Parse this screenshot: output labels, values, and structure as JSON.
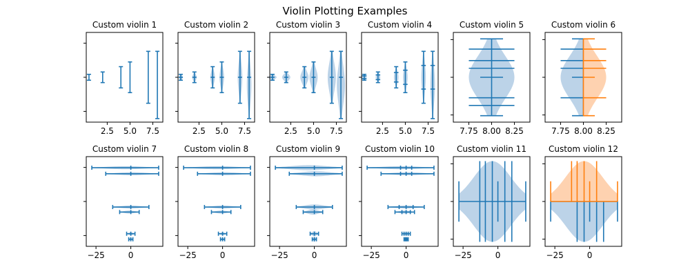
{
  "suptitle": "Violin Plotting Examples",
  "colors": {
    "blue": "#1f77b4",
    "blue_fill": "#bcd3e8",
    "orange": "#ff7f0e",
    "orange_fill": "#fed2b0"
  },
  "chart_data": [
    {
      "type": "violin",
      "title": "Custom violin 1",
      "orientation": "vertical",
      "x_ticks": [
        2.5,
        5.0,
        7.5
      ],
      "x_tick_labels": [
        "2.5",
        "5.0",
        "7.5"
      ],
      "xlim": [
        0.2,
        8.6
      ],
      "ylim": [
        -3.8,
        3.8
      ],
      "violins": [
        {
          "pos": 0.5,
          "min": -0.25,
          "max": 0.25,
          "median": 0,
          "mean": 0,
          "width": 0.08,
          "color": "blue"
        },
        {
          "pos": 2,
          "min": -0.45,
          "max": 0.45,
          "median": 0,
          "mean": 0,
          "width": 0.08,
          "color": "blue"
        },
        {
          "pos": 4,
          "min": -0.9,
          "max": 0.9,
          "median": 0,
          "mean": 0,
          "width": 0.08,
          "color": "blue"
        },
        {
          "pos": 5,
          "min": -1.3,
          "max": 1.3,
          "median": 0,
          "mean": 0,
          "width": 0.08,
          "color": "blue"
        },
        {
          "pos": 7,
          "min": -2.2,
          "max": 2.2,
          "median": 0,
          "mean": 0,
          "width": 0.08,
          "color": "blue"
        },
        {
          "pos": 8,
          "min": -3.5,
          "max": 2.2,
          "median": 0,
          "mean": 0,
          "width": 0.08,
          "color": "blue"
        }
      ]
    },
    {
      "type": "violin",
      "title": "Custom violin 2",
      "orientation": "vertical",
      "x_ticks": [
        2.5,
        5.0,
        7.5
      ],
      "x_tick_labels": [
        "2.5",
        "5.0",
        "7.5"
      ],
      "xlim": [
        0.2,
        8.6
      ],
      "ylim": [
        -3.8,
        3.8
      ],
      "violins": [
        {
          "pos": 0.5,
          "min": -0.25,
          "max": 0.25,
          "median": 0,
          "mean": 0,
          "width": 0.5,
          "color": "blue",
          "showmedians": true
        },
        {
          "pos": 2,
          "min": -0.45,
          "max": 0.45,
          "median": 0,
          "mean": 0,
          "width": 0.5,
          "color": "blue",
          "showmedians": true
        },
        {
          "pos": 4,
          "min": -0.9,
          "max": 0.9,
          "median": 0,
          "mean": 0,
          "width": 0.5,
          "color": "blue",
          "showmedians": true
        },
        {
          "pos": 5,
          "min": -1.3,
          "max": 1.3,
          "median": 0,
          "mean": 0,
          "width": 0.5,
          "color": "blue",
          "showmedians": true
        },
        {
          "pos": 7,
          "min": -2.2,
          "max": 2.2,
          "median": 0,
          "mean": 0,
          "width": 0.5,
          "color": "blue",
          "showmedians": true
        },
        {
          "pos": 8,
          "min": -3.5,
          "max": 2.2,
          "median": 0,
          "mean": 0,
          "width": 0.5,
          "color": "blue",
          "showmedians": true
        }
      ]
    },
    {
      "type": "violin",
      "title": "Custom violin 3",
      "orientation": "vertical",
      "x_ticks": [
        2.5,
        5.0,
        7.5
      ],
      "x_tick_labels": [
        "2.5",
        "5.0",
        "7.5"
      ],
      "xlim": [
        0.2,
        8.6
      ],
      "ylim": [
        -3.8,
        3.8
      ],
      "violins": [
        {
          "pos": 0.5,
          "min": -0.25,
          "max": 0.25,
          "median": 0,
          "mean": 0,
          "width": 0.9,
          "color": "blue",
          "showmedians": true
        },
        {
          "pos": 2,
          "min": -0.45,
          "max": 0.45,
          "median": 0,
          "mean": 0,
          "width": 0.9,
          "color": "blue",
          "showmedians": true
        },
        {
          "pos": 4,
          "min": -0.9,
          "max": 0.9,
          "median": 0,
          "mean": 0,
          "width": 0.9,
          "color": "blue",
          "showmedians": true
        },
        {
          "pos": 5,
          "min": -1.3,
          "max": 1.3,
          "median": 0,
          "mean": 0,
          "width": 0.9,
          "color": "blue",
          "showmedians": true
        },
        {
          "pos": 7,
          "min": -2.2,
          "max": 2.2,
          "median": 0,
          "mean": 0,
          "width": 0.9,
          "color": "blue",
          "showmedians": true
        },
        {
          "pos": 8,
          "min": -3.5,
          "max": 2.2,
          "median": 0,
          "mean": 0,
          "width": 0.9,
          "color": "blue",
          "showmedians": true
        }
      ]
    },
    {
      "type": "violin",
      "title": "Custom violin 4",
      "orientation": "vertical",
      "x_ticks": [
        2.5,
        5.0,
        7.5
      ],
      "x_tick_labels": [
        "2.5",
        "5.0",
        "7.5"
      ],
      "xlim": [
        0.2,
        8.6
      ],
      "ylim": [
        -3.8,
        3.8
      ],
      "violins": [
        {
          "pos": 0.5,
          "min": -0.25,
          "max": 0.25,
          "median": 0,
          "mean": 0,
          "width": 0.5,
          "color": "blue",
          "quantiles": [
            -0.12,
            0.12
          ]
        },
        {
          "pos": 2,
          "min": -0.45,
          "max": 0.45,
          "median": 0,
          "mean": 0,
          "width": 0.5,
          "color": "blue",
          "quantiles": [
            -0.2,
            0.2
          ]
        },
        {
          "pos": 4,
          "min": -0.9,
          "max": 0.9,
          "median": 0,
          "mean": 0,
          "width": 0.5,
          "color": "blue",
          "quantiles": [
            -0.4,
            0.4
          ]
        },
        {
          "pos": 5,
          "min": -1.3,
          "max": 1.3,
          "median": 0,
          "mean": 0,
          "width": 0.5,
          "color": "blue",
          "quantiles": [
            -0.6,
            0.6
          ]
        },
        {
          "pos": 7,
          "min": -2.2,
          "max": 2.2,
          "median": 0,
          "mean": 0,
          "width": 0.5,
          "color": "blue",
          "quantiles": [
            -1.0,
            1.0
          ]
        },
        {
          "pos": 8,
          "min": -3.5,
          "max": 2.2,
          "median": 0,
          "mean": 0,
          "width": 0.5,
          "color": "blue",
          "quantiles": [
            -1.0,
            1.0
          ]
        }
      ]
    },
    {
      "type": "violin",
      "title": "Custom violin 5",
      "orientation": "vertical",
      "x_ticks": [
        7.75,
        8.0,
        8.25
      ],
      "x_tick_labels": [
        "7.75",
        "8.00",
        "8.25"
      ],
      "xlim": [
        7.58,
        8.42
      ],
      "ylim": [
        -3.5,
        3.5
      ],
      "violins": [
        {
          "pos": 8,
          "min": -3.0,
          "max": 3.0,
          "median": 0,
          "mean": 0,
          "width": 0.5,
          "color": "blue",
          "showmedians": true,
          "quantiles": [
            -2.2,
            -1.6,
            0.7,
            1.3,
            2.2
          ]
        }
      ]
    },
    {
      "type": "violin",
      "title": "Custom violin 6",
      "orientation": "vertical",
      "x_ticks": [
        7.75,
        8.0,
        8.25
      ],
      "x_tick_labels": [
        "7.75",
        "8.00",
        "8.25"
      ],
      "xlim": [
        7.58,
        8.42
      ],
      "ylim": [
        -3.5,
        3.5
      ],
      "violins": [
        {
          "pos": 8,
          "min": -3.0,
          "max": 3.0,
          "median": 0,
          "width": 0.5,
          "color": "blue",
          "side": "low",
          "showmedians": true,
          "quantiles": [
            -1.6,
            0.7,
            1.3,
            2.2
          ]
        },
        {
          "pos": 8,
          "min": -3.0,
          "max": 3.0,
          "median": 0,
          "width": 0.5,
          "color": "orange",
          "side": "high",
          "showmedians": true,
          "quantiles": [
            -1.6,
            0.7,
            1.3,
            2.2
          ]
        }
      ]
    },
    {
      "type": "violin",
      "title": "Custom violin 7",
      "orientation": "horizontal",
      "x_ticks": [
        -25,
        0
      ],
      "x_tick_labels": [
        "−25",
        "0"
      ],
      "xlim": [
        -32,
        23
      ],
      "ylim": [
        0.1,
        9.0
      ],
      "violins": [
        {
          "pos": 0.8,
          "min": -1.5,
          "max": 1.5,
          "median": 0,
          "mean": 0,
          "width": 0.3,
          "color": "blue",
          "showmedians": true
        },
        {
          "pos": 1.35,
          "min": -3,
          "max": 3,
          "median": 0,
          "mean": 0,
          "width": 0.3,
          "color": "blue",
          "showmedians": true
        },
        {
          "pos": 3.5,
          "min": -8,
          "max": 6,
          "median": 0,
          "mean": 0,
          "width": 0.3,
          "color": "blue",
          "showmedians": true
        },
        {
          "pos": 4.0,
          "min": -13,
          "max": 13,
          "median": 0,
          "mean": 0,
          "width": 0.3,
          "color": "blue",
          "showmedians": true
        },
        {
          "pos": 7.3,
          "min": -18,
          "max": 20,
          "median": 0,
          "mean": 0,
          "width": 0.3,
          "color": "blue",
          "showmedians": true
        },
        {
          "pos": 7.9,
          "min": -28,
          "max": 20,
          "median": 0,
          "mean": 0,
          "width": 0.3,
          "color": "blue",
          "showmedians": true
        }
      ]
    },
    {
      "type": "violin",
      "title": "Custom violin 8",
      "orientation": "horizontal",
      "x_ticks": [
        -25,
        0
      ],
      "x_tick_labels": [
        "−25",
        "0"
      ],
      "xlim": [
        -32,
        23
      ],
      "ylim": [
        0.1,
        9.0
      ],
      "violins": [
        {
          "pos": 0.8,
          "min": -1.5,
          "max": 1.5,
          "median": 0,
          "mean": 0,
          "width": 0.3,
          "color": "blue",
          "showmedians": true
        },
        {
          "pos": 1.35,
          "min": -3,
          "max": 3,
          "median": 0,
          "mean": 0,
          "width": 0.3,
          "color": "blue",
          "showmedians": true
        },
        {
          "pos": 3.5,
          "min": -8,
          "max": 6,
          "median": 0,
          "mean": 0,
          "width": 0.3,
          "color": "blue",
          "showmedians": true
        },
        {
          "pos": 4.0,
          "min": -13,
          "max": 13,
          "median": 0,
          "mean": 0,
          "width": 0.3,
          "color": "blue",
          "showmedians": true
        },
        {
          "pos": 7.3,
          "min": -18,
          "max": 20,
          "median": 0,
          "mean": 0,
          "width": 0.3,
          "color": "blue",
          "showmedians": true
        },
        {
          "pos": 7.9,
          "min": -28,
          "max": 20,
          "median": 0,
          "mean": 0,
          "width": 0.3,
          "color": "blue",
          "showmedians": true
        }
      ]
    },
    {
      "type": "violin",
      "title": "Custom violin 9",
      "orientation": "horizontal",
      "x_ticks": [
        -25,
        0
      ],
      "x_tick_labels": [
        "−25",
        "0"
      ],
      "xlim": [
        -32,
        23
      ],
      "ylim": [
        0.1,
        9.0
      ],
      "violins": [
        {
          "pos": 0.8,
          "min": -1.5,
          "max": 1.5,
          "median": 0,
          "mean": 0,
          "width": 0.5,
          "color": "blue",
          "showmedians": true
        },
        {
          "pos": 1.35,
          "min": -3,
          "max": 3,
          "median": 0,
          "mean": 0,
          "width": 0.5,
          "color": "blue",
          "showmedians": true
        },
        {
          "pos": 3.5,
          "min": -8,
          "max": 6,
          "median": 0,
          "mean": 0,
          "width": 0.5,
          "color": "blue",
          "showmedians": true
        },
        {
          "pos": 4.0,
          "min": -13,
          "max": 13,
          "median": 0,
          "mean": 0,
          "width": 0.5,
          "color": "blue",
          "showmedians": true
        },
        {
          "pos": 7.3,
          "min": -18,
          "max": 20,
          "median": 0,
          "mean": 0,
          "width": 0.5,
          "color": "blue",
          "showmedians": true
        },
        {
          "pos": 7.9,
          "min": -28,
          "max": 20,
          "median": 0,
          "mean": 0,
          "width": 0.5,
          "color": "blue",
          "showmedians": true
        }
      ]
    },
    {
      "type": "violin",
      "title": "Custom violin 10",
      "orientation": "horizontal",
      "x_ticks": [
        -25,
        0
      ],
      "x_tick_labels": [
        "−25",
        "0"
      ],
      "xlim": [
        -32,
        23
      ],
      "ylim": [
        0.1,
        9.0
      ],
      "violins": [
        {
          "pos": 0.8,
          "min": -1.5,
          "max": 1.5,
          "median": 0,
          "mean": 0,
          "width": 0.3,
          "color": "blue",
          "showmedians": true,
          "quantiles": [
            -0.7,
            0.7
          ]
        },
        {
          "pos": 1.35,
          "min": -3,
          "max": 3,
          "median": 0,
          "mean": 0,
          "width": 0.3,
          "color": "blue",
          "showmedians": true,
          "quantiles": [
            -1.5,
            1.5
          ]
        },
        {
          "pos": 3.5,
          "min": -8,
          "max": 6,
          "median": 0,
          "mean": 0,
          "width": 0.3,
          "color": "blue",
          "showmedians": true,
          "quantiles": [
            -3,
            3
          ]
        },
        {
          "pos": 4.0,
          "min": -13,
          "max": 13,
          "median": 0,
          "mean": 0,
          "width": 0.3,
          "color": "blue",
          "showmedians": true,
          "quantiles": [
            -5,
            5
          ]
        },
        {
          "pos": 7.3,
          "min": -18,
          "max": 20,
          "median": 0,
          "mean": 0,
          "width": 0.3,
          "color": "blue",
          "showmedians": true,
          "quantiles": [
            -4,
            4
          ]
        },
        {
          "pos": 7.9,
          "min": -28,
          "max": 20,
          "median": 0,
          "mean": 0,
          "width": 0.3,
          "color": "blue",
          "showmedians": true,
          "quantiles": [
            -4,
            4
          ]
        }
      ]
    },
    {
      "type": "violin",
      "title": "Custom violin 11",
      "orientation": "horizontal",
      "x_ticks": [
        -25,
        0
      ],
      "x_tick_labels": [
        "−25",
        "0"
      ],
      "xlim": [
        -32,
        23
      ],
      "ylim": [
        0.5,
        1.5
      ],
      "violins": [
        {
          "pos": 1,
          "min": -28,
          "max": 20,
          "median": 0,
          "width": 0.9,
          "color": "blue",
          "showmedians": true,
          "quantiles": [
            -13,
            -9,
            -4,
            5,
            10
          ]
        }
      ]
    },
    {
      "type": "violin",
      "title": "Custom violin 12",
      "orientation": "horizontal",
      "x_ticks": [
        -25,
        0
      ],
      "x_tick_labels": [
        "−25",
        "0"
      ],
      "xlim": [
        -32,
        23
      ],
      "ylim": [
        0.5,
        1.5
      ],
      "violins": [
        {
          "pos": 1,
          "min": -28,
          "max": 20,
          "median": 0,
          "width": 0.9,
          "color": "blue",
          "side": "low",
          "showmedians": true,
          "quantiles": [
            -9,
            -4,
            5,
            10
          ]
        },
        {
          "pos": 1,
          "min": -28,
          "max": 20,
          "median": 0,
          "width": 0.9,
          "color": "orange",
          "side": "high",
          "showmedians": true,
          "quantiles": [
            -13,
            -9,
            -4,
            5
          ]
        }
      ]
    }
  ]
}
